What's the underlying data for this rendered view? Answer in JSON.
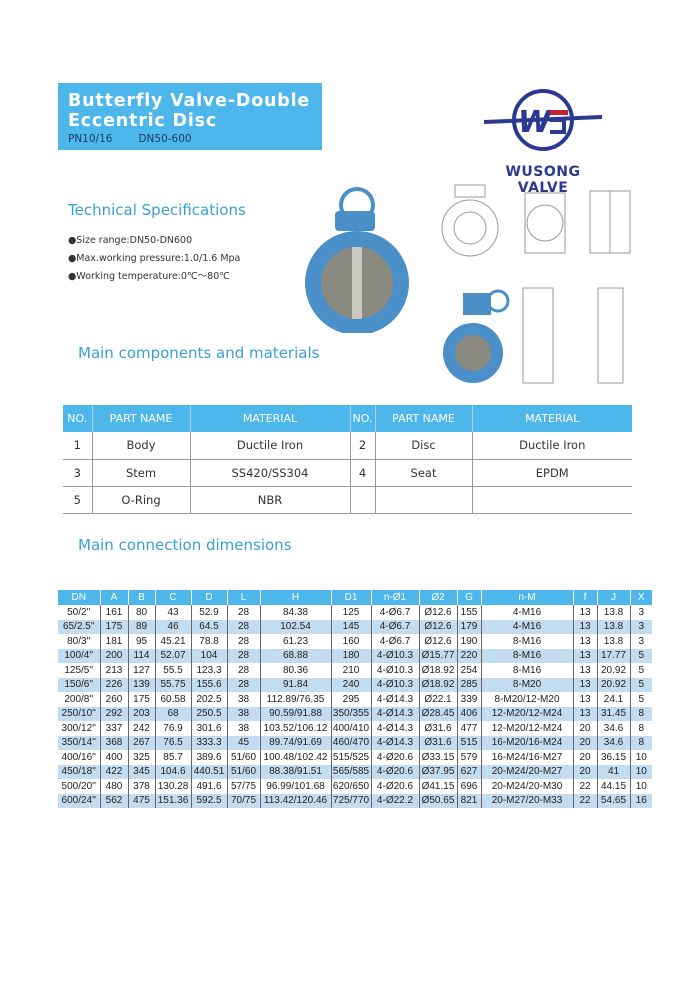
{
  "header": {
    "title_line1": "Butterfly Valve-Double",
    "title_line2": "Eccentric Disc",
    "pressure": "PN10/16",
    "size": "DN50-600"
  },
  "logo": {
    "text": "WUSONG VALVE",
    "brand_color": "#2b3990"
  },
  "colors": {
    "accent": "#4db6ea",
    "row_alt": "#c3dcef",
    "heading": "#3a9fd8"
  },
  "tech_specs": {
    "heading": "Technical Specifications",
    "items": [
      "●Size range:DN50-DN600",
      "●Max.working pressure:1.0/1.6 Mpa",
      "●Working temperature:0℃～80℃"
    ]
  },
  "components": {
    "heading": "Main components and materials",
    "headers": [
      "NO.",
      "PART NAME",
      "MATERIAL",
      "NO.",
      "PART NAME",
      "MATERIAL"
    ],
    "rows": [
      [
        "1",
        "Body",
        "Ductile Iron",
        "2",
        "Disc",
        "Ductile Iron"
      ],
      [
        "3",
        "Stem",
        "SS420/SS304",
        "4",
        "Seat",
        "EPDM"
      ],
      [
        "5",
        "O-Ring",
        "NBR",
        "",
        "",
        ""
      ]
    ]
  },
  "dimensions": {
    "heading": "Main connection dimensions",
    "headers": [
      "DN",
      "A",
      "B",
      "C",
      "D",
      "L",
      "H",
      "D1",
      "n-Ø1",
      "Ø2",
      "G",
      "n-M",
      "f",
      "J",
      "X"
    ],
    "rows": [
      [
        "50/2''",
        "161",
        "80",
        "43",
        "52.9",
        "28",
        "84.38",
        "125",
        "4-Ø6.7",
        "Ø12.6",
        "155",
        "4-M16",
        "13",
        "13.8",
        "3"
      ],
      [
        "65/2.5''",
        "175",
        "89",
        "46",
        "64.5",
        "28",
        "102.54",
        "145",
        "4-Ø6.7",
        "Ø12.6",
        "179",
        "4-M16",
        "13",
        "13.8",
        "3"
      ],
      [
        "80/3''",
        "181",
        "95",
        "45.21",
        "78.8",
        "28",
        "61.23",
        "160",
        "4-Ø6.7",
        "Ø12.6",
        "190",
        "8-M16",
        "13",
        "13.8",
        "3"
      ],
      [
        "100/4''",
        "200",
        "114",
        "52.07",
        "104",
        "28",
        "68.88",
        "180",
        "4-Ø10.3",
        "Ø15.77",
        "220",
        "8-M16",
        "13",
        "17.77",
        "5"
      ],
      [
        "125/5''",
        "213",
        "127",
        "55.5",
        "123.3",
        "28",
        "80.36",
        "210",
        "4-Ø10.3",
        "Ø18.92",
        "254",
        "8-M16",
        "13",
        "20.92",
        "5"
      ],
      [
        "150/6''",
        "226",
        "139",
        "55.75",
        "155.6",
        "28",
        "91.84",
        "240",
        "4-Ø10.3",
        "Ø18.92",
        "285",
        "8-M20",
        "13",
        "20.92",
        "5"
      ],
      [
        "200/8''",
        "260",
        "175",
        "60.58",
        "202.5",
        "38",
        "112.89/76.35",
        "295",
        "4-Ø14.3",
        "Ø22.1",
        "339",
        "8-M20/12-M20",
        "13",
        "24.1",
        "5"
      ],
      [
        "250/10''",
        "292",
        "203",
        "68",
        "250.5",
        "38",
        "90.59/91.88",
        "350/355",
        "4-Ø14.3",
        "Ø28.45",
        "406",
        "12-M20/12-M24",
        "13",
        "31.45",
        "8"
      ],
      [
        "300/12''",
        "337",
        "242",
        "76.9",
        "301.6",
        "38",
        "103.52/106.12",
        "400/410",
        "4-Ø14.3",
        "Ø31.6",
        "477",
        "12-M20/12-M24",
        "20",
        "34.6",
        "8"
      ],
      [
        "350/14''",
        "368",
        "267",
        "76.5",
        "333.3",
        "45",
        "89.74/91.69",
        "460/470",
        "4-Ø14.3",
        "Ø31.6",
        "515",
        "16-M20/16-M24",
        "20",
        "34.6",
        "8"
      ],
      [
        "400/16''",
        "400",
        "325",
        "85.7",
        "389.6",
        "51/60",
        "100.48/102.42",
        "515/525",
        "4-Ø20.6",
        "Ø33.15",
        "579",
        "16-M24/16-M27",
        "20",
        "36.15",
        "10"
      ],
      [
        "450/18''",
        "422",
        "345",
        "104.6",
        "440.51",
        "51/60",
        "88.38/91.51",
        "565/585",
        "4-Ø20.6",
        "Ø37.95",
        "627",
        "20-M24/20-M27",
        "20",
        "41",
        "10"
      ],
      [
        "500/20''",
        "480",
        "378",
        "130.28",
        "491.6",
        "57/75",
        "96.99/101.68",
        "620/650",
        "4-Ø20.6",
        "Ø41.15",
        "696",
        "20-M24/20-M30",
        "22",
        "44.15",
        "10"
      ],
      [
        "600/24''",
        "562",
        "475",
        "151.36",
        "592.5",
        "70/75",
        "113.42/120.46",
        "725/770",
        "4-Ø22.2",
        "Ø50.65",
        "821",
        "20-M27/20-M33",
        "22",
        "54.65",
        "16"
      ]
    ]
  }
}
